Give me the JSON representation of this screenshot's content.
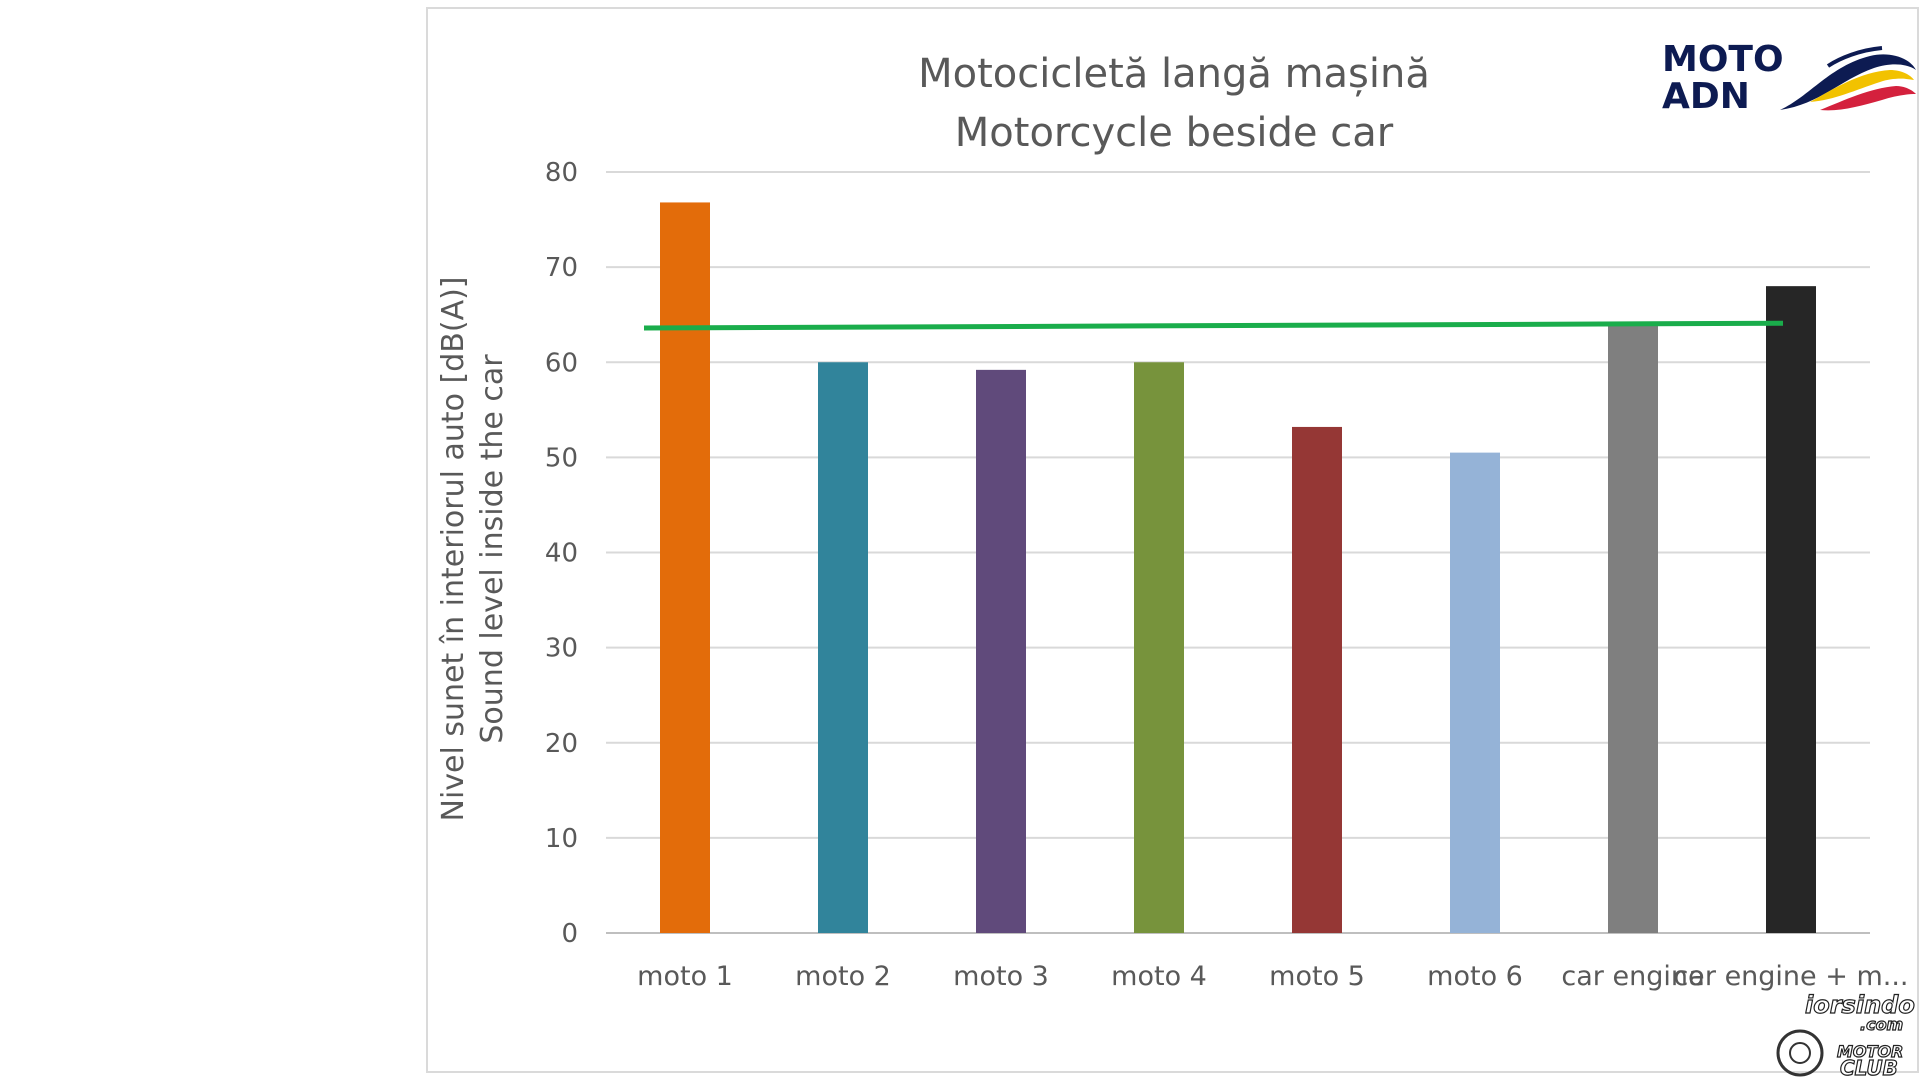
{
  "chart_data": {
    "type": "bar",
    "title_lines": [
      "Motocicletă langă  mașină",
      "Motorcycle beside car"
    ],
    "ylabel_lines": [
      "Nivel sunet în interiorul auto [dB(A)]",
      "Sound level inside the car"
    ],
    "xlabel": "",
    "ylim": [
      0,
      80
    ],
    "yticks": [
      0,
      10,
      20,
      30,
      40,
      50,
      60,
      70,
      80
    ],
    "grid": true,
    "legend": "none",
    "categories": [
      "moto 1",
      "moto 2",
      "moto 3",
      "moto 4",
      "moto 5",
      "moto 6",
      "car engine",
      "car engine + m..."
    ],
    "values": [
      76.8,
      60.0,
      59.2,
      60.0,
      53.2,
      50.5,
      63.9,
      68.0
    ],
    "bar_colors": [
      "#e36c0a",
      "#31849b",
      "#604a7b",
      "#77933c",
      "#953735",
      "#95b3d7",
      "#7f7f7f",
      "#262626"
    ],
    "reference_line": {
      "color": "#1aad4b",
      "y_start": 63.6,
      "y_end": 64.1
    }
  },
  "logo": {
    "line1": "MOTO",
    "line2": "ADN"
  },
  "watermark": {
    "line1": "iorsindo",
    "line2": ".com",
    "line3": "MOTOR",
    "line4": "CLUB"
  }
}
